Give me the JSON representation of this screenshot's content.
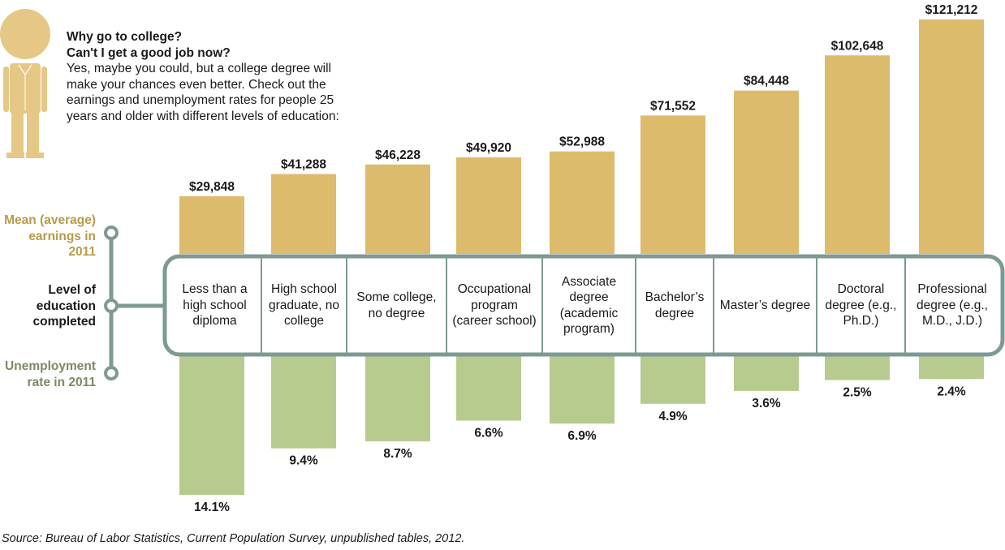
{
  "intro": {
    "heading_line1": "Why go to college?",
    "heading_line2": "Can't I get a good job now?",
    "body": "Yes, maybe you could, but a college degree will make your chances even better. Check out the earnings and unemployment rates for people 25 years and older with different levels of education:"
  },
  "side_labels": {
    "earnings": "Mean (average) earnings in 2011",
    "education": "Level of education completed",
    "unemployment": "Unemployment rate in 2011"
  },
  "source": "Source: Bureau of Labor Statistics, Current Population Survey, unpublished tables, 2012.",
  "colors": {
    "earnings_bar": "#dcbb6c",
    "unemployment_bar": "#b7cb8f",
    "timeline": "#7d9a94",
    "earnings_label": "#b99a4d",
    "unemployment_label": "#7b8a5f",
    "figure": "#e6c886"
  },
  "icons": {
    "figure": "person-figure-icon"
  },
  "chart_data": {
    "type": "bar",
    "categories": [
      "Less than a high school diploma",
      "High school graduate, no college",
      "Some college, no degree",
      "Occupational program (career school)",
      "Associate degree (academic program)",
      "Bachelor’s degree",
      "Master’s degree",
      "Doctoral degree (e.g., Ph.D.)",
      "Professional degree (e.g., M.D., J.D.)"
    ],
    "series": [
      {
        "name": "Mean (average) earnings in 2011",
        "values": [
          29848,
          41288,
          46228,
          49920,
          52988,
          71552,
          84448,
          102648,
          121212
        ],
        "labels": [
          "$29,848",
          "$41,288",
          "$46,228",
          "$49,920",
          "$52,988",
          "$71,552",
          "$84,448",
          "$102,648",
          "$121,212"
        ]
      },
      {
        "name": "Unemployment rate in 2011",
        "values": [
          14.1,
          9.4,
          8.7,
          6.6,
          6.9,
          4.9,
          3.6,
          2.5,
          2.4
        ],
        "labels": [
          "14.1%",
          "9.4%",
          "8.7%",
          "6.6%",
          "6.9%",
          "4.9%",
          "3.6%",
          "2.5%",
          "2.4%"
        ]
      }
    ]
  }
}
